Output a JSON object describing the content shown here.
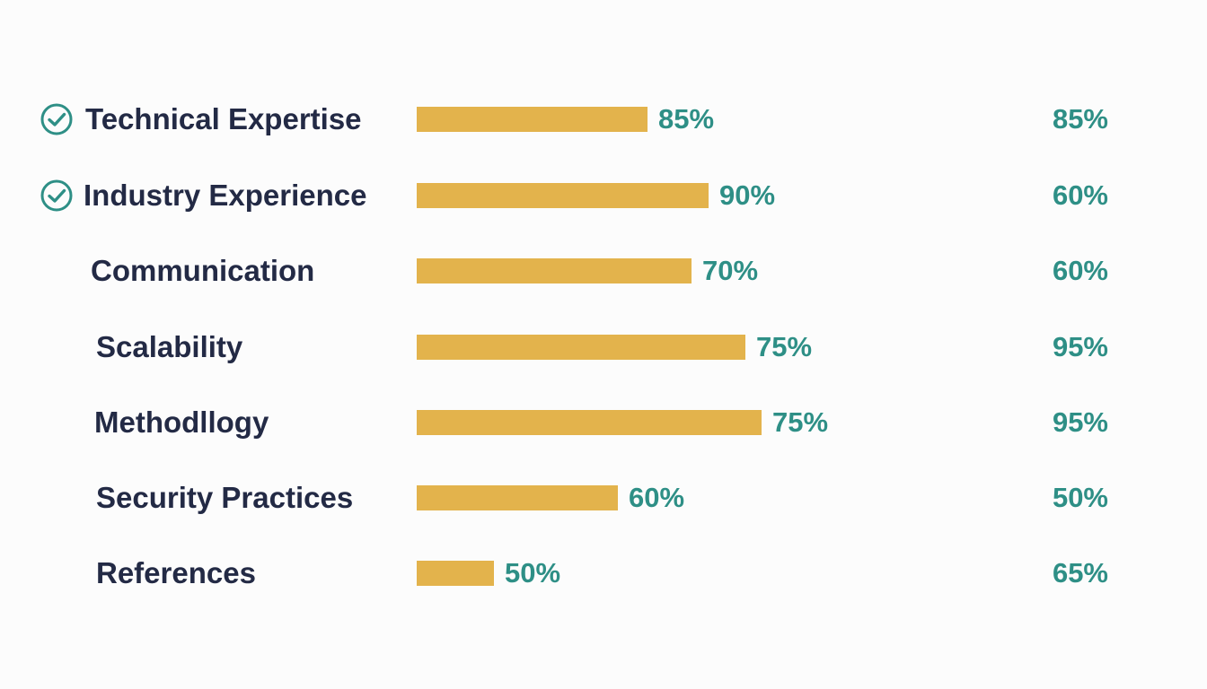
{
  "colors": {
    "bar": "#e3b34c",
    "label": "#232a45",
    "value": "#2e8f86",
    "check": "#2e8f86"
  },
  "chart_data": {
    "type": "bar",
    "orientation": "horizontal",
    "categories": [
      "Technical Expertise",
      "Industry Experience",
      "Communication",
      "Scalability",
      "Methodllogy",
      "Security Practices",
      "References"
    ],
    "checked": [
      true,
      true,
      false,
      false,
      false,
      false,
      false
    ],
    "series": [
      {
        "values": [
          85,
          90,
          70,
          75,
          75,
          60,
          50
        ],
        "labels": [
          "85%",
          "90%",
          "70%",
          "75%",
          "75%",
          "60%",
          "50%"
        ]
      },
      {
        "values": [
          85,
          60,
          60,
          95,
          95,
          50,
          65
        ],
        "labels": [
          "85%",
          "60%",
          "60%",
          "95%",
          "95%",
          "50%",
          "65%"
        ]
      }
    ],
    "bar_lengths": [
      0.69,
      0.87,
      0.82,
      0.98,
      1.03,
      0.6,
      0.23
    ],
    "grid": false,
    "legend": "none"
  }
}
